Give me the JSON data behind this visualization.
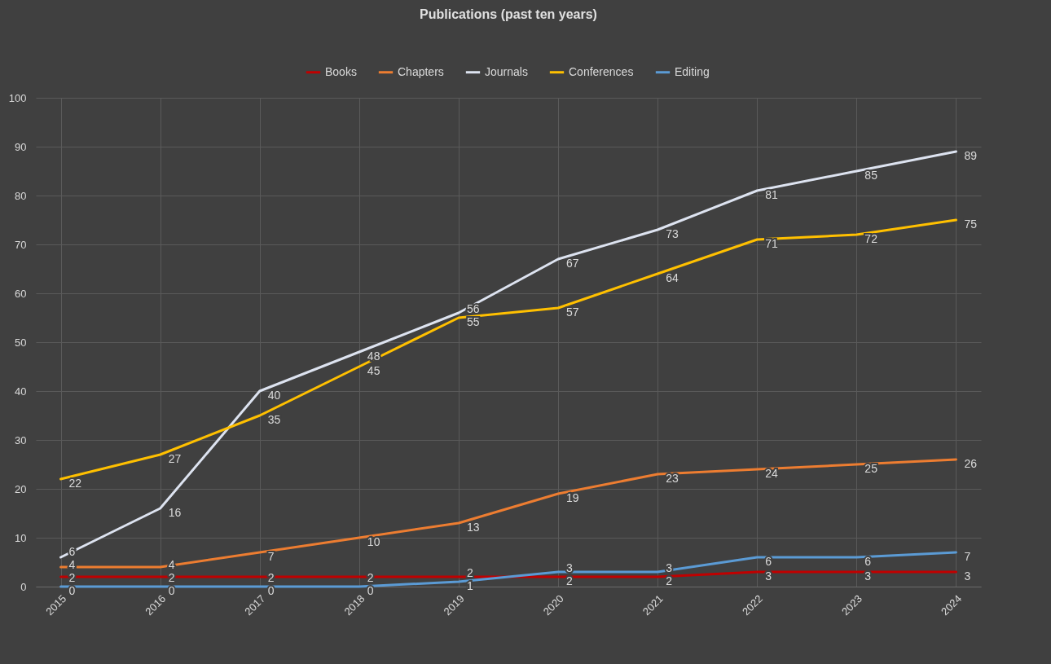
{
  "chart_data": {
    "type": "line",
    "title": "Publications (past ten years)",
    "categories": [
      "2015",
      "2016",
      "2017",
      "2018",
      "2019",
      "2020",
      "2021",
      "2022",
      "2023",
      "2024"
    ],
    "series": [
      {
        "name": "Books",
        "color": "#c00000",
        "values": [
          2,
          2,
          2,
          2,
          2,
          2,
          2,
          3,
          3,
          3
        ]
      },
      {
        "name": "Chapters",
        "color": "#ed7d31",
        "values": [
          4,
          4,
          7,
          10,
          13,
          19,
          23,
          24,
          25,
          26
        ]
      },
      {
        "name": "Journals",
        "color": "#dde3f0",
        "values": [
          6,
          16,
          40,
          48,
          56,
          67,
          73,
          81,
          85,
          89
        ]
      },
      {
        "name": "Conferences",
        "color": "#ffc000",
        "values": [
          22,
          27,
          35,
          45,
          55,
          57,
          64,
          71,
          72,
          75
        ]
      },
      {
        "name": "Editing",
        "color": "#5b9bd5",
        "values": [
          0,
          0,
          0,
          0,
          1,
          3,
          3,
          6,
          6,
          7
        ]
      }
    ],
    "ylim": [
      0,
      100
    ],
    "yticks": [
      0,
      10,
      20,
      30,
      40,
      50,
      60,
      70,
      80,
      90,
      100
    ],
    "grid": true,
    "legend": "top",
    "data_labels": true,
    "marker": "none",
    "line_style": "solid"
  }
}
